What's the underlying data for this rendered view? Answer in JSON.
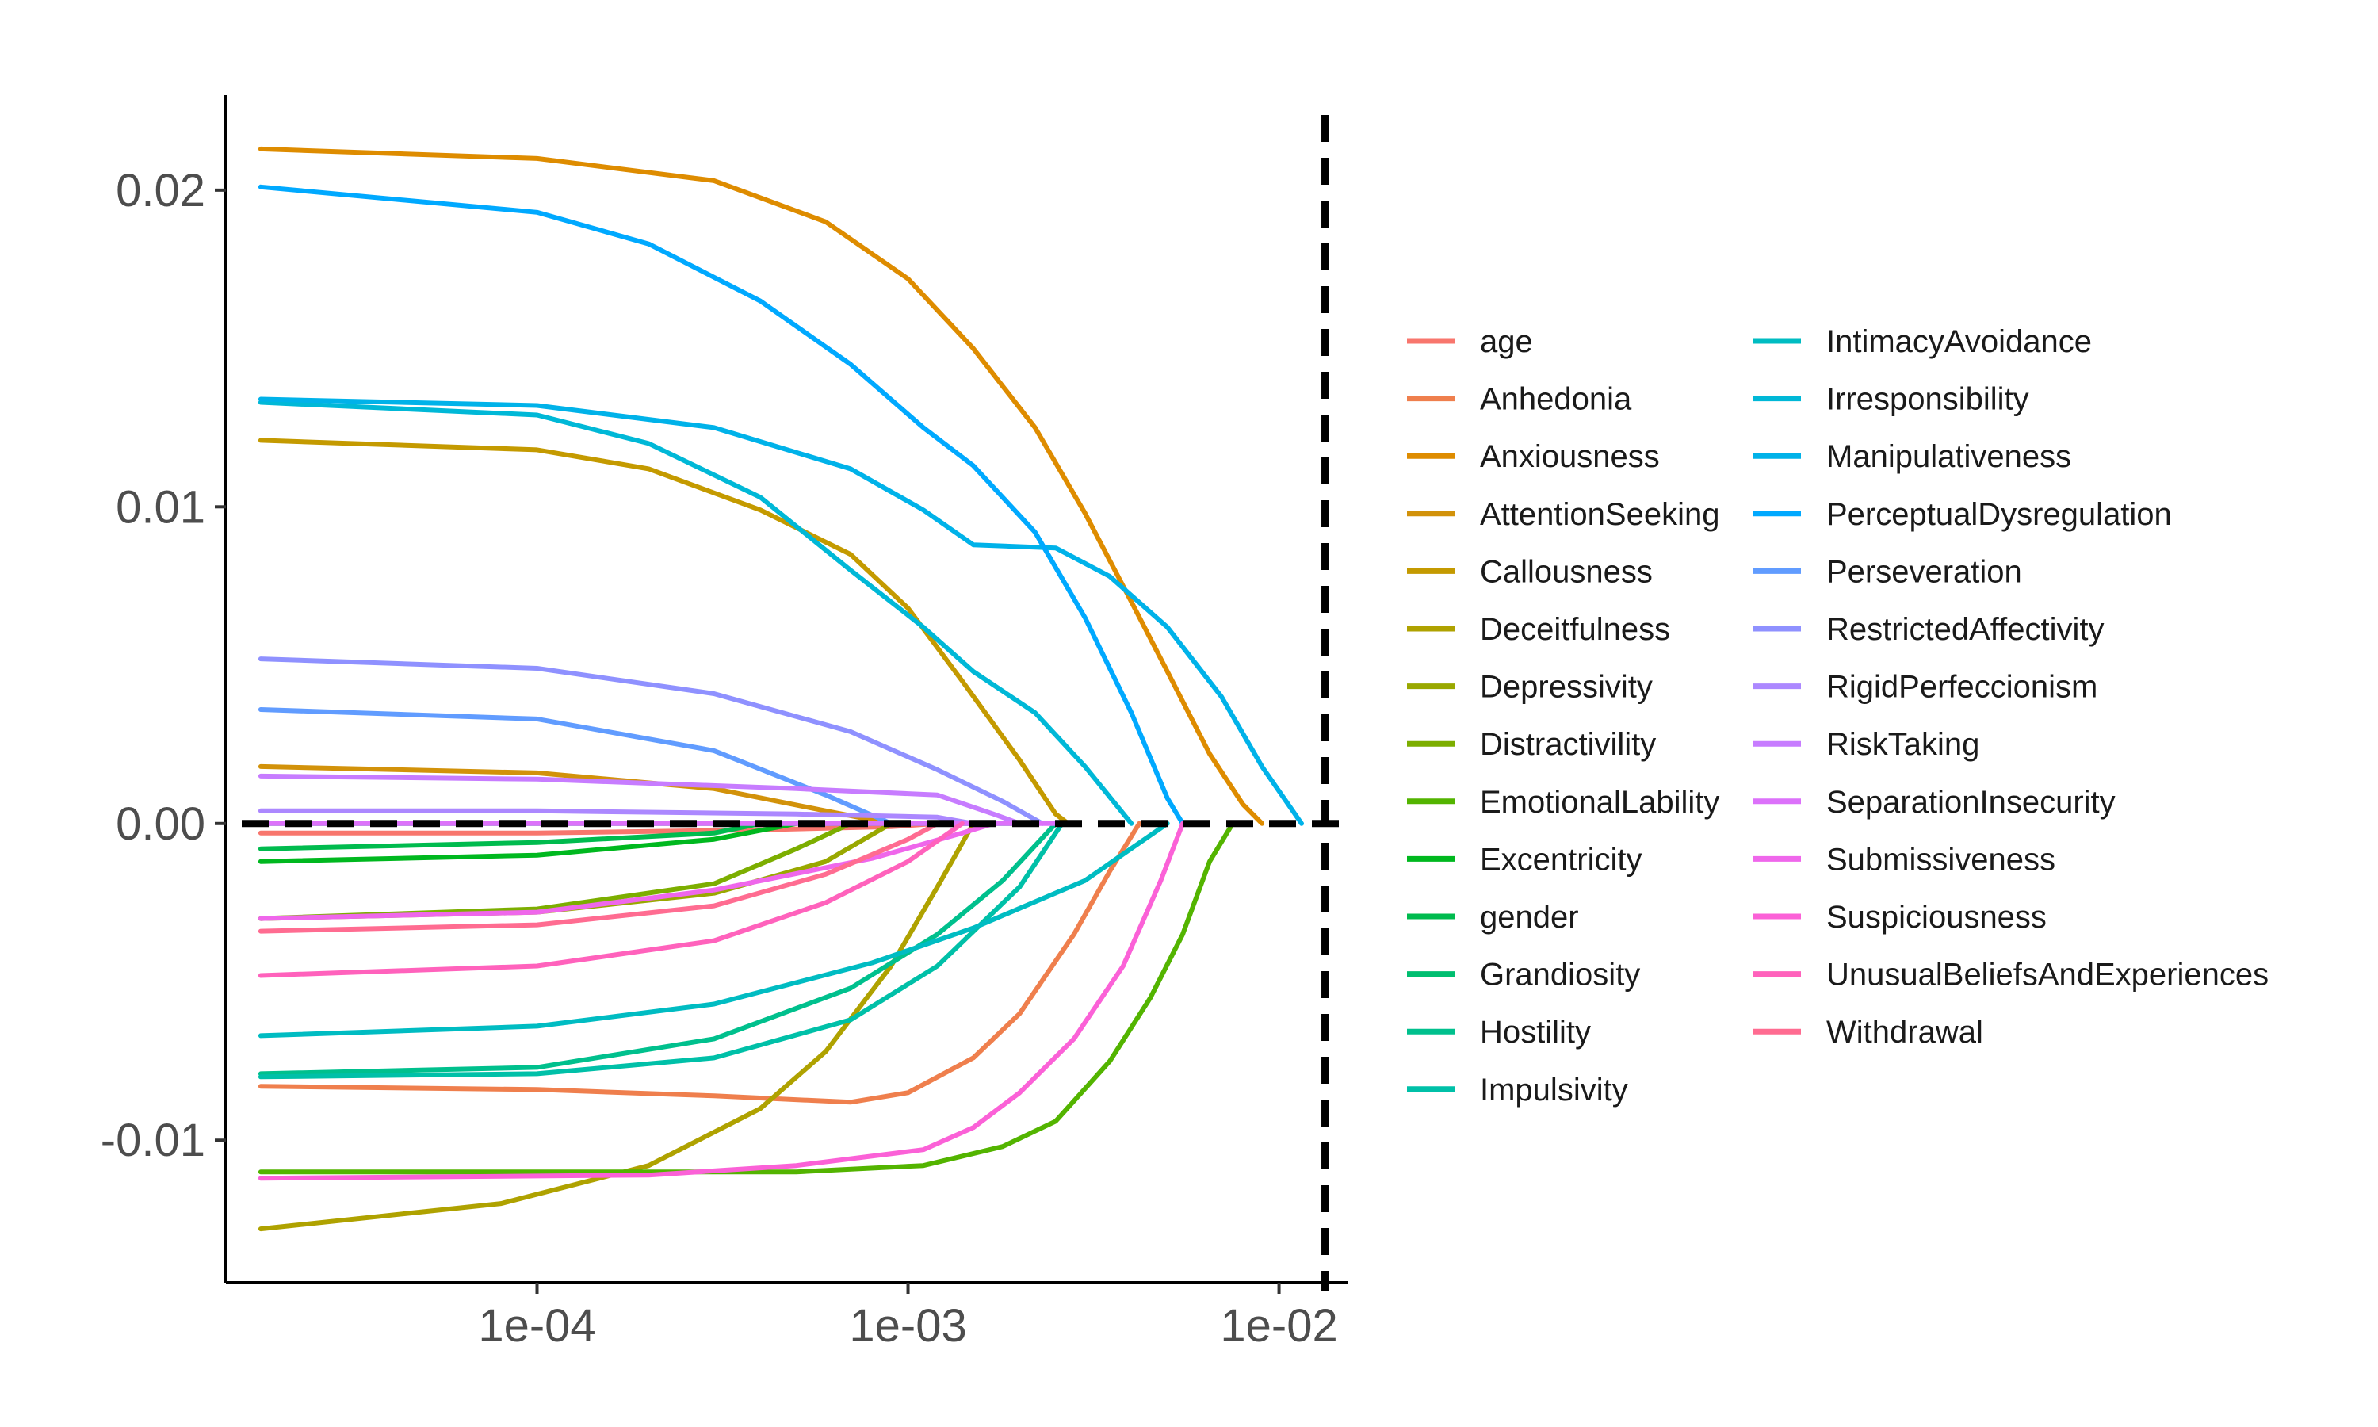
{
  "chart_data": {
    "type": "line",
    "title": "",
    "xlabel": "",
    "ylabel": "",
    "x_scale": "log10",
    "xlim": [
      1.45e-05,
      0.0153
    ],
    "ylim": [
      -0.0145,
      0.023
    ],
    "x_ticks": [
      {
        "value": 0.0001,
        "label": "1e-04"
      },
      {
        "value": 0.001,
        "label": "1e-03"
      },
      {
        "value": 0.01,
        "label": "1e-02"
      }
    ],
    "y_ticks": [
      {
        "value": 0.02,
        "label": "0.02"
      },
      {
        "value": 0.01,
        "label": "0.01"
      },
      {
        "value": 0.0,
        "label": "0.00"
      },
      {
        "value": -0.01,
        "label": "-0.01"
      }
    ],
    "grid": false,
    "legend_position": "right",
    "reference_lines": [
      {
        "orientation": "horizontal",
        "value": 0.0,
        "style": "dashed",
        "color": "#000000"
      },
      {
        "orientation": "vertical",
        "value": 0.0133,
        "style": "dashed",
        "color": "#000000"
      }
    ],
    "series": [
      {
        "name": "age",
        "color": "#F8766D",
        "points": [
          [
            1.8e-05,
            -0.0003
          ],
          [
            0.0001,
            -0.0003
          ],
          [
            0.0004,
            -0.0002
          ],
          [
            0.0009,
            -0.0001
          ],
          [
            0.0012,
            0.0
          ]
        ]
      },
      {
        "name": "Anhedonia",
        "color": "#EF7F4D",
        "points": [
          [
            1.8e-05,
            -0.0083
          ],
          [
            0.0001,
            -0.0084
          ],
          [
            0.0003,
            -0.0086
          ],
          [
            0.0007,
            -0.0088
          ],
          [
            0.001,
            -0.0085
          ],
          [
            0.0015,
            -0.0074
          ],
          [
            0.002,
            -0.006
          ],
          [
            0.0028,
            -0.0035
          ],
          [
            0.0035,
            -0.0015
          ],
          [
            0.0042,
            0.0
          ]
        ]
      },
      {
        "name": "Anxiousness",
        "color": "#DE8C00",
        "points": [
          [
            1.8e-05,
            0.0213
          ],
          [
            0.0001,
            0.021
          ],
          [
            0.0003,
            0.0203
          ],
          [
            0.0006,
            0.019
          ],
          [
            0.001,
            0.0172
          ],
          [
            0.0015,
            0.015
          ],
          [
            0.0022,
            0.0125
          ],
          [
            0.003,
            0.0098
          ],
          [
            0.004,
            0.007
          ],
          [
            0.005,
            0.0048
          ],
          [
            0.0065,
            0.0022
          ],
          [
            0.008,
            0.0006
          ],
          [
            0.009,
            0.0
          ]
        ]
      },
      {
        "name": "AttentionSeeking",
        "color": "#D2920A",
        "points": [
          [
            1.8e-05,
            0.0018
          ],
          [
            0.0001,
            0.0016
          ],
          [
            0.0003,
            0.0011
          ],
          [
            0.0006,
            0.0004
          ],
          [
            0.0009,
            0.0
          ]
        ]
      },
      {
        "name": "Callousness",
        "color": "#C49A00",
        "points": [
          [
            1.8e-05,
            0.0121
          ],
          [
            0.0001,
            0.0118
          ],
          [
            0.0002,
            0.0112
          ],
          [
            0.0004,
            0.0099
          ],
          [
            0.0007,
            0.0085
          ],
          [
            0.001,
            0.0068
          ],
          [
            0.0014,
            0.0045
          ],
          [
            0.002,
            0.002
          ],
          [
            0.0025,
            0.0003
          ],
          [
            0.0027,
            0.0
          ]
        ]
      },
      {
        "name": "Deceitfulness",
        "color": "#AFA200",
        "points": [
          [
            1.8e-05,
            -0.0128
          ],
          [
            8e-05,
            -0.012
          ],
          [
            0.0002,
            -0.0108
          ],
          [
            0.0004,
            -0.009
          ],
          [
            0.0006,
            -0.0072
          ],
          [
            0.0009,
            -0.0045
          ],
          [
            0.0012,
            -0.002
          ],
          [
            0.0015,
            0.0
          ]
        ]
      },
      {
        "name": "Depressivity",
        "color": "#99A800",
        "points": [
          [
            1.8e-05,
            -0.003
          ],
          [
            0.0001,
            -0.0028
          ],
          [
            0.0003,
            -0.0022
          ],
          [
            0.0006,
            -0.0012
          ],
          [
            0.0009,
            0.0
          ]
        ]
      },
      {
        "name": "Distractivility",
        "color": "#7CAE00",
        "points": [
          [
            1.8e-05,
            -0.003
          ],
          [
            0.0001,
            -0.0027
          ],
          [
            0.0003,
            -0.0019
          ],
          [
            0.0005,
            -0.0008
          ],
          [
            0.0007,
            0.0
          ]
        ]
      },
      {
        "name": "EmotionalLability",
        "color": "#53B400",
        "points": [
          [
            1.8e-05,
            -0.011
          ],
          [
            0.0001,
            -0.011
          ],
          [
            0.0005,
            -0.011
          ],
          [
            0.0011,
            -0.0108
          ],
          [
            0.0018,
            -0.0102
          ],
          [
            0.0025,
            -0.0094
          ],
          [
            0.0035,
            -0.0075
          ],
          [
            0.0045,
            -0.0055
          ],
          [
            0.0055,
            -0.0035
          ],
          [
            0.0065,
            -0.0012
          ],
          [
            0.0075,
            0.0
          ]
        ]
      },
      {
        "name": "Excentricity",
        "color": "#00B81F",
        "points": [
          [
            1.8e-05,
            -0.0012
          ],
          [
            0.0001,
            -0.001
          ],
          [
            0.0003,
            -0.0005
          ],
          [
            0.0005,
            0.0
          ]
        ]
      },
      {
        "name": "gender",
        "color": "#00BB4E",
        "points": [
          [
            1.8e-05,
            -0.0008
          ],
          [
            0.0001,
            -0.0006
          ],
          [
            0.0003,
            -0.0003
          ],
          [
            0.0004,
            0.0
          ]
        ]
      },
      {
        "name": "Grandiosity",
        "color": "#00BE70",
        "points": [
          [
            1.8e-05,
            0.0
          ],
          [
            0.002,
            0.0
          ]
        ]
      },
      {
        "name": "Hostility",
        "color": "#00C08D",
        "points": [
          [
            1.8e-05,
            -0.0079
          ],
          [
            0.0001,
            -0.0077
          ],
          [
            0.0003,
            -0.0068
          ],
          [
            0.0007,
            -0.0052
          ],
          [
            0.0012,
            -0.0035
          ],
          [
            0.0018,
            -0.0018
          ],
          [
            0.0025,
            0.0
          ]
        ]
      },
      {
        "name": "Impulsivity",
        "color": "#00C0A8",
        "points": [
          [
            1.8e-05,
            -0.008
          ],
          [
            0.0001,
            -0.0079
          ],
          [
            0.0003,
            -0.0074
          ],
          [
            0.0007,
            -0.0062
          ],
          [
            0.0012,
            -0.0045
          ],
          [
            0.002,
            -0.002
          ],
          [
            0.0026,
            0.0
          ]
        ]
      },
      {
        "name": "IntimacyAvoidance",
        "color": "#00BCC2",
        "points": [
          [
            1.8e-05,
            -0.0067
          ],
          [
            0.0001,
            -0.0064
          ],
          [
            0.0003,
            -0.0057
          ],
          [
            0.0008,
            -0.0044
          ],
          [
            0.0015,
            -0.0033
          ],
          [
            0.003,
            -0.0018
          ],
          [
            0.005,
            0.0
          ]
        ]
      },
      {
        "name": "Irresponsibility",
        "color": "#00B8D7",
        "points": [
          [
            1.8e-05,
            0.0133
          ],
          [
            0.0001,
            0.0129
          ],
          [
            0.0002,
            0.012
          ],
          [
            0.0004,
            0.0103
          ],
          [
            0.0007,
            0.008
          ],
          [
            0.0011,
            0.0062
          ],
          [
            0.0015,
            0.0048
          ],
          [
            0.0022,
            0.0035
          ],
          [
            0.003,
            0.0018
          ],
          [
            0.004,
            0.0
          ]
        ]
      },
      {
        "name": "Manipulativeness",
        "color": "#00B2E9",
        "points": [
          [
            1.8e-05,
            0.0134
          ],
          [
            0.0001,
            0.0132
          ],
          [
            0.0003,
            0.0125
          ],
          [
            0.0007,
            0.0112
          ],
          [
            0.0011,
            0.0099
          ],
          [
            0.0015,
            0.0088
          ],
          [
            0.0025,
            0.0087
          ],
          [
            0.0035,
            0.0078
          ],
          [
            0.005,
            0.0062
          ],
          [
            0.007,
            0.004
          ],
          [
            0.009,
            0.0018
          ],
          [
            0.0115,
            0.0
          ]
        ]
      },
      {
        "name": "PerceptualDysregulation",
        "color": "#00A9FF",
        "points": [
          [
            1.8e-05,
            0.0201
          ],
          [
            0.0001,
            0.0193
          ],
          [
            0.0002,
            0.0183
          ],
          [
            0.0004,
            0.0165
          ],
          [
            0.0007,
            0.0145
          ],
          [
            0.0011,
            0.0125
          ],
          [
            0.0015,
            0.0113
          ],
          [
            0.0022,
            0.0092
          ],
          [
            0.003,
            0.0065
          ],
          [
            0.004,
            0.0035
          ],
          [
            0.005,
            0.0008
          ],
          [
            0.0055,
            0.0
          ]
        ]
      },
      {
        "name": "Perseveration",
        "color": "#619CFF",
        "points": [
          [
            1.8e-05,
            0.0036
          ],
          [
            0.0001,
            0.0033
          ],
          [
            0.0003,
            0.0023
          ],
          [
            0.0006,
            0.0009
          ],
          [
            0.0009,
            0.0
          ]
        ]
      },
      {
        "name": "RestrictedAffectivity",
        "color": "#8F91FF",
        "points": [
          [
            1.8e-05,
            0.0052
          ],
          [
            0.0001,
            0.0049
          ],
          [
            0.0003,
            0.0041
          ],
          [
            0.0007,
            0.0029
          ],
          [
            0.0012,
            0.0017
          ],
          [
            0.0018,
            0.0007
          ],
          [
            0.0023,
            0.0
          ]
        ]
      },
      {
        "name": "RigidPerfeccionism",
        "color": "#AC88FF",
        "points": [
          [
            1.8e-05,
            0.0004
          ],
          [
            0.0001,
            0.0004
          ],
          [
            0.0005,
            0.0003
          ],
          [
            0.0012,
            0.0002
          ],
          [
            0.0015,
            0.0
          ]
        ]
      },
      {
        "name": "RiskTaking",
        "color": "#C77CFF",
        "points": [
          [
            1.8e-05,
            0.0015
          ],
          [
            0.0001,
            0.0014
          ],
          [
            0.0005,
            0.0011
          ],
          [
            0.0012,
            0.0009
          ],
          [
            0.0017,
            0.0003
          ],
          [
            0.002,
            0.0
          ]
        ]
      },
      {
        "name": "SeparationInsecurity",
        "color": "#DC71FA",
        "points": [
          [
            1.8e-05,
            0.0
          ],
          [
            0.0025,
            0.0
          ]
        ]
      },
      {
        "name": "Submissiveness",
        "color": "#EF67EB",
        "points": [
          [
            1.8e-05,
            -0.003
          ],
          [
            0.0001,
            -0.0028
          ],
          [
            0.0003,
            -0.0021
          ],
          [
            0.0008,
            -0.0011
          ],
          [
            0.0014,
            -0.0003
          ],
          [
            0.0017,
            0.0
          ]
        ]
      },
      {
        "name": "Suspiciousness",
        "color": "#FB61D7",
        "points": [
          [
            1.8e-05,
            -0.0112
          ],
          [
            0.0002,
            -0.0111
          ],
          [
            0.0005,
            -0.0108
          ],
          [
            0.0011,
            -0.0103
          ],
          [
            0.0015,
            -0.0096
          ],
          [
            0.002,
            -0.0085
          ],
          [
            0.0028,
            -0.0068
          ],
          [
            0.0038,
            -0.0045
          ],
          [
            0.0048,
            -0.0018
          ],
          [
            0.0055,
            0.0
          ]
        ]
      },
      {
        "name": "UnusualBeliefsAndExperiences",
        "color": "#FF62BC",
        "points": [
          [
            1.8e-05,
            -0.0048
          ],
          [
            0.0001,
            -0.0045
          ],
          [
            0.0003,
            -0.0037
          ],
          [
            0.0006,
            -0.0025
          ],
          [
            0.001,
            -0.0012
          ],
          [
            0.0014,
            0.0
          ]
        ]
      },
      {
        "name": "Withdrawal",
        "color": "#FF6C91",
        "points": [
          [
            1.8e-05,
            -0.0034
          ],
          [
            0.0001,
            -0.0032
          ],
          [
            0.0003,
            -0.0026
          ],
          [
            0.0006,
            -0.0016
          ],
          [
            0.001,
            -0.0005
          ],
          [
            0.0012,
            0.0
          ]
        ]
      }
    ]
  }
}
